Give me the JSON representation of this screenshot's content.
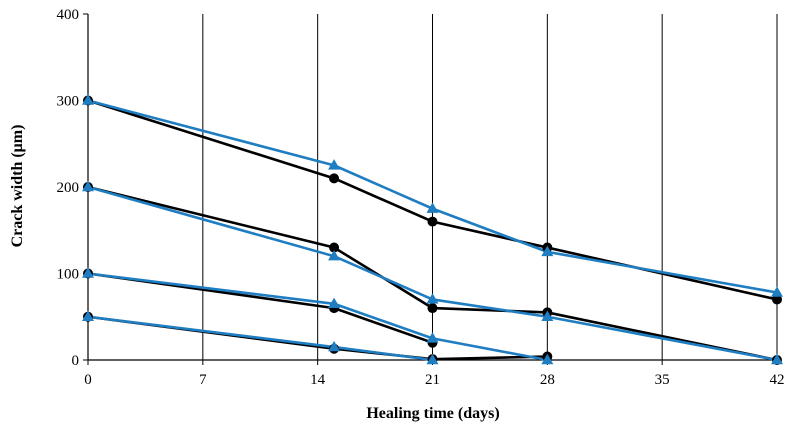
{
  "chart_data": {
    "type": "line",
    "xlabel": "Healing time (days)",
    "ylabel": "Crack width (μm)",
    "xlim": [
      0,
      42
    ],
    "ylim": [
      0,
      400
    ],
    "xticks": [
      0,
      7,
      14,
      21,
      28,
      35,
      42
    ],
    "yticks": [
      0,
      100,
      200,
      300,
      400
    ],
    "grid": "vertical lines at x ticks",
    "legend": "none",
    "series": [
      {
        "marker": "circle",
        "color": "#000000",
        "x": [
          0,
          15,
          21,
          28,
          42
        ],
        "y": [
          300,
          210,
          160,
          130,
          70
        ]
      },
      {
        "marker": "circle",
        "color": "#000000",
        "x": [
          0,
          15,
          21,
          28,
          42
        ],
        "y": [
          200,
          130,
          60,
          55,
          0
        ]
      },
      {
        "marker": "circle",
        "color": "#000000",
        "x": [
          0,
          15,
          21
        ],
        "y": [
          100,
          60,
          20
        ]
      },
      {
        "marker": "circle",
        "color": "#000000",
        "x": [
          0,
          15,
          21,
          28
        ],
        "y": [
          50,
          13,
          1,
          4
        ]
      },
      {
        "marker": "triangle",
        "color": "#1F7DC1",
        "x": [
          0,
          15,
          21,
          28,
          42
        ],
        "y": [
          300,
          225,
          175,
          125,
          78
        ]
      },
      {
        "marker": "triangle",
        "color": "#1F7DC1",
        "x": [
          0,
          15,
          21,
          28,
          42
        ],
        "y": [
          200,
          120,
          70,
          50,
          0
        ]
      },
      {
        "marker": "triangle",
        "color": "#1F7DC1",
        "x": [
          0,
          15,
          21,
          28
        ],
        "y": [
          100,
          65,
          25,
          0
        ]
      },
      {
        "marker": "triangle",
        "color": "#1F7DC1",
        "x": [
          0,
          15,
          21
        ],
        "y": [
          50,
          15,
          0
        ]
      }
    ]
  }
}
